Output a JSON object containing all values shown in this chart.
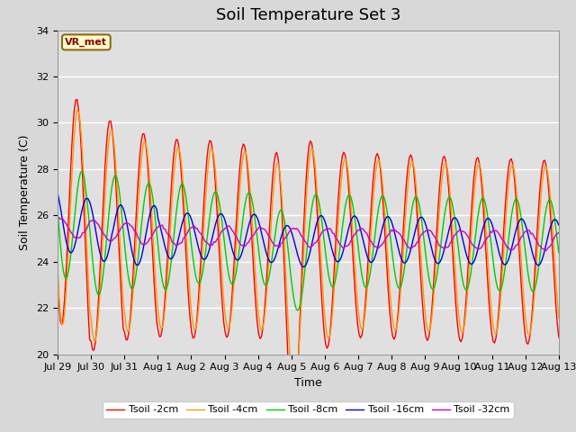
{
  "title": "Soil Temperature Set 3",
  "xlabel": "Time",
  "ylabel": "Soil Temperature (C)",
  "ylim": [
    20,
    34
  ],
  "yticks": [
    20,
    22,
    24,
    26,
    28,
    30,
    32,
    34
  ],
  "background_color": "#d8d8d8",
  "plot_bg_color": "#e0e0e0",
  "annotation_text": "VR_met",
  "annotation_bg": "#ffffcc",
  "annotation_border": "#8b6914",
  "legend_entries": [
    "Tsoil -2cm",
    "Tsoil -4cm",
    "Tsoil -8cm",
    "Tsoil -16cm",
    "Tsoil -32cm"
  ],
  "line_colors": [
    "#ff0000",
    "#ff9900",
    "#00cc00",
    "#0000dd",
    "#cc00cc"
  ],
  "x_tick_labels": [
    "Jul 29",
    "Jul 30",
    "Jul 31",
    "Aug 1",
    "Aug 2",
    "Aug 3",
    "Aug 4",
    "Aug 5",
    "Aug 6",
    "Aug 7",
    "Aug 8",
    "Aug 9",
    "Aug 10",
    "Aug 11",
    "Aug 12",
    "Aug 13"
  ],
  "title_fontsize": 13,
  "axis_label_fontsize": 9,
  "tick_fontsize": 8
}
